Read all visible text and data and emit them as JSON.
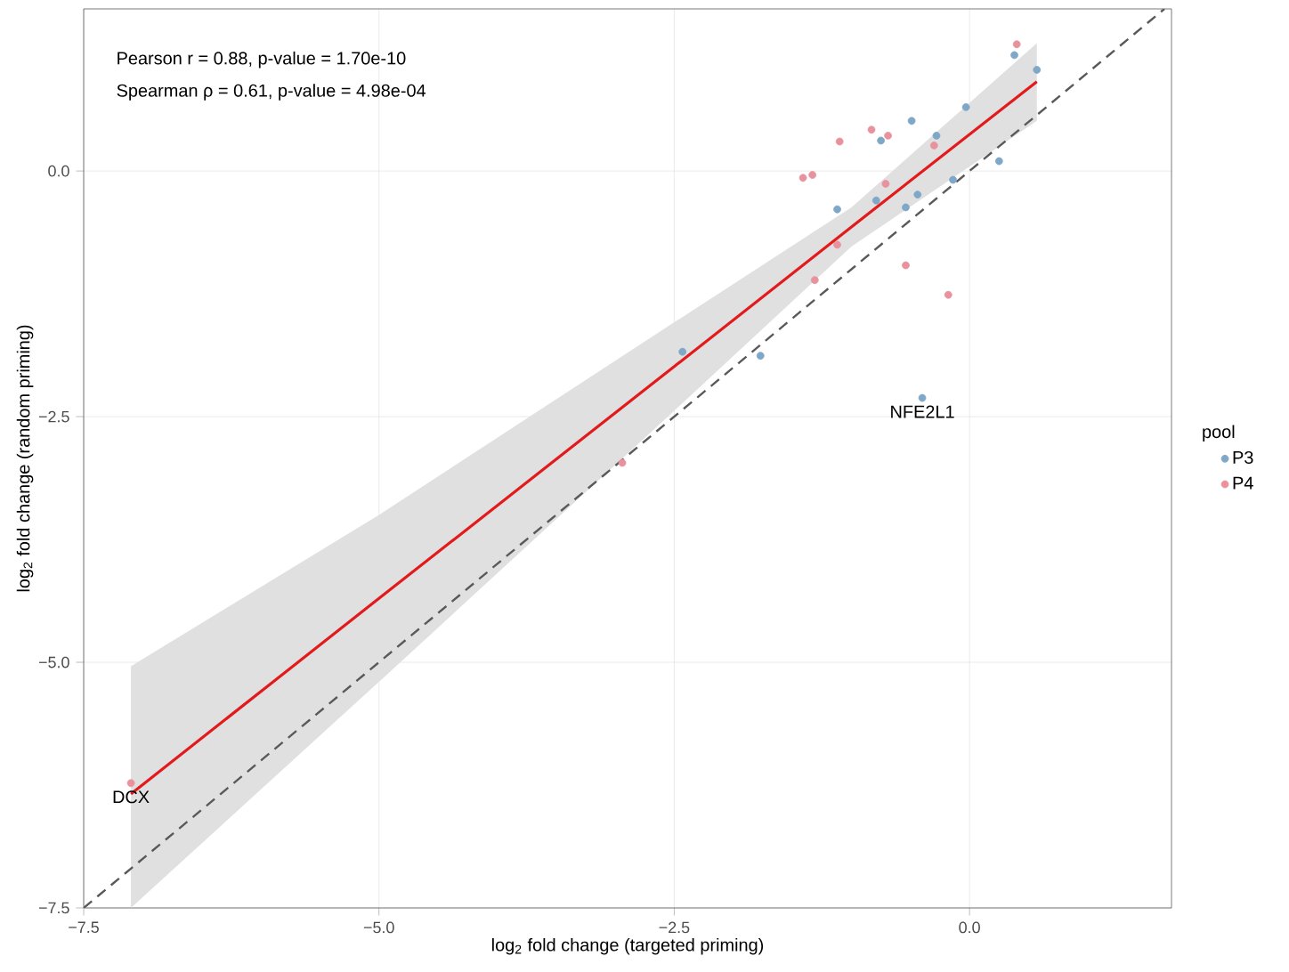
{
  "chart_data": {
    "type": "scatter",
    "xlabel": "log$_{2}$ fold change (targeted priming)",
    "ylabel": "log$_{2}$ fold change (random priming)",
    "legend_title": "pool",
    "legend": "right",
    "grid": true,
    "xlim": [
      -7.5,
      1.71
    ],
    "ylim": [
      -7.5,
      1.65
    ],
    "xticks": [
      {
        "value": -7.5,
        "label": "−7.5"
      },
      {
        "value": -5.0,
        "label": "−5.0"
      },
      {
        "value": -2.5,
        "label": "−2.5"
      },
      {
        "value": 0.0,
        "label": "0.0"
      }
    ],
    "yticks": [
      {
        "value": -7.5,
        "label": "−7.5"
      },
      {
        "value": -5.0,
        "label": "−5.0"
      },
      {
        "value": -2.5,
        "label": "−2.5"
      },
      {
        "value": 0.0,
        "label": "0.0"
      }
    ],
    "annotations": [
      "Pearson r = 0.88, p-value = 1.70e-10",
      "Spearman ρ = 0.61, p-value = 4.98e-04",
      {
        "text": "DCX",
        "x": -7.1,
        "y": -6.23
      },
      {
        "text": "NFE2L1",
        "x": -0.4,
        "y": -2.31
      }
    ],
    "series": [
      {
        "name": "P3",
        "color": "#7fa7c7",
        "marker": "circle",
        "x": [
          0.38,
          0.57,
          -0.03,
          -0.49,
          -0.28,
          -0.75,
          0.25,
          -0.14,
          -0.44,
          -0.79,
          -0.54,
          -1.12,
          -2.43,
          -1.77,
          -0.4
        ],
        "values": [
          1.18,
          1.03,
          0.65,
          0.51,
          0.36,
          0.31,
          0.1,
          -0.09,
          -0.24,
          -0.3,
          -0.37,
          -0.39,
          -1.84,
          -1.88,
          -2.31
        ]
      },
      {
        "name": "P4",
        "color": "#e8929e",
        "marker": "circle",
        "x": [
          0.4,
          -0.83,
          -0.69,
          -1.1,
          -0.3,
          -1.41,
          -1.33,
          -0.71,
          -1.12,
          -1.31,
          -0.54,
          -0.18,
          -2.94,
          -7.1
        ],
        "values": [
          1.29,
          0.42,
          0.36,
          0.3,
          0.26,
          -0.07,
          -0.04,
          -0.13,
          -0.75,
          -1.11,
          -0.96,
          -1.26,
          -2.97,
          -6.23
        ]
      },
      {
        "type": "line",
        "color": "#e31a1c",
        "line_style": "solid",
        "marker": "none",
        "x": [
          -7.1,
          -5.0,
          -2.5,
          -1.0,
          0.57
        ],
        "values": [
          -6.34,
          -4.35,
          -1.99,
          -0.57,
          0.91
        ],
        "lower": [
          -7.5,
          -5.2,
          -2.44,
          -0.77,
          0.51
        ],
        "upper": [
          -5.04,
          -3.5,
          -1.54,
          -0.37,
          1.3
        ]
      },
      {
        "type": "line",
        "color": "#595959",
        "line_style": "dashed",
        "marker": "none",
        "x": [
          -7.5,
          1.65
        ],
        "values": [
          -7.5,
          1.65
        ]
      }
    ]
  }
}
